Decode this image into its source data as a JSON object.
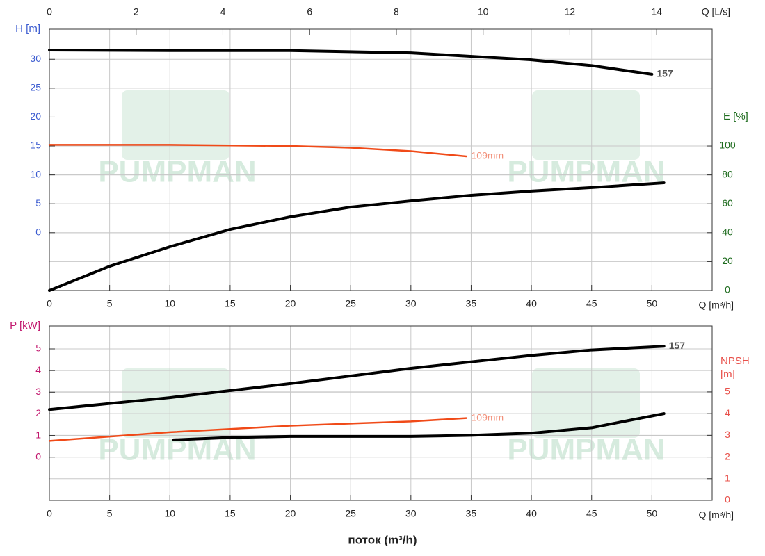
{
  "watermark": "PUMPMAN",
  "chart_data": [
    {
      "type": "line",
      "xlim": [
        0,
        55
      ],
      "xticks": [
        0,
        5,
        10,
        15,
        20,
        25,
        30,
        35,
        40,
        45,
        50
      ],
      "xlabel": "Q [m³/h]",
      "x2lim": [
        0,
        15.28
      ],
      "x2ticks": [
        0,
        2,
        4,
        6,
        8,
        10,
        12,
        14
      ],
      "x2label": "Q [L/s]",
      "ylim": [
        -10,
        35.2
      ],
      "yticks": [
        0,
        5,
        10,
        15,
        20,
        25,
        30
      ],
      "ylabel": "H [m]",
      "ycolor": "#3b5bd0",
      "y2lim": [
        0,
        180.8
      ],
      "y2ticks": [
        0,
        20,
        40,
        60,
        80,
        100
      ],
      "y2label": "E [%]",
      "y2color": "#1d6b1d",
      "grid": true,
      "series": [
        {
          "name": "157",
          "color": "#000000",
          "label_color": "#555555",
          "width": 4,
          "x": [
            0,
            10,
            20,
            30,
            40,
            45,
            50
          ],
          "values": [
            31.6,
            31.5,
            31.5,
            31.1,
            29.9,
            28.9,
            27.4
          ]
        },
        {
          "name": "109mm",
          "color": "#f04a18",
          "label_color": "#f2907a",
          "width": 2.5,
          "x": [
            0,
            10,
            20,
            25,
            30,
            34.6
          ],
          "values": [
            15.2,
            15.2,
            15.0,
            14.7,
            14.1,
            13.2
          ]
        },
        {
          "axis": "y2",
          "color": "#000000",
          "width": 4,
          "x": [
            0,
            5,
            10,
            15,
            20,
            25,
            30,
            35,
            40,
            45,
            51
          ],
          "values": [
            0,
            16.8,
            30.3,
            42.3,
            51,
            57.7,
            62,
            65.9,
            68.8,
            71.2,
            74.5
          ]
        }
      ]
    },
    {
      "type": "line",
      "xlim": [
        0,
        55
      ],
      "xticks": [
        0,
        5,
        10,
        15,
        20,
        25,
        30,
        35,
        40,
        45,
        50
      ],
      "xlabel": "Q [m³/h]",
      "ylim": [
        -2,
        6.06
      ],
      "yticks": [
        0,
        1,
        2,
        3,
        4,
        5
      ],
      "ylabel": "P [kW]",
      "ycolor": "#c2186e",
      "y2lim": [
        0,
        8.04
      ],
      "y2ticks": [
        0,
        1,
        2,
        3,
        4,
        5
      ],
      "y2label": "NPSH [m]",
      "y2color": "#e8504a",
      "grid": true,
      "series": [
        {
          "name": "157",
          "color": "#000000",
          "label_color": "#555555",
          "width": 4,
          "x": [
            0,
            10,
            20,
            30,
            40,
            45,
            51
          ],
          "values": [
            2.2,
            2.75,
            3.4,
            4.1,
            4.7,
            4.95,
            5.12
          ]
        },
        {
          "name": "109mm",
          "color": "#f04a18",
          "label_color": "#f2907a",
          "width": 2.5,
          "x": [
            0,
            10,
            20,
            30,
            34.6
          ],
          "values": [
            0.75,
            1.15,
            1.45,
            1.65,
            1.8
          ]
        },
        {
          "axis": "y2",
          "color": "#000000",
          "width": 4,
          "x": [
            10.3,
            15,
            20,
            30,
            35,
            40,
            45,
            51
          ],
          "values": [
            2.79,
            2.9,
            2.95,
            2.95,
            3.0,
            3.1,
            3.35,
            4.0
          ]
        }
      ],
      "title": "поток (m³/h)"
    }
  ]
}
